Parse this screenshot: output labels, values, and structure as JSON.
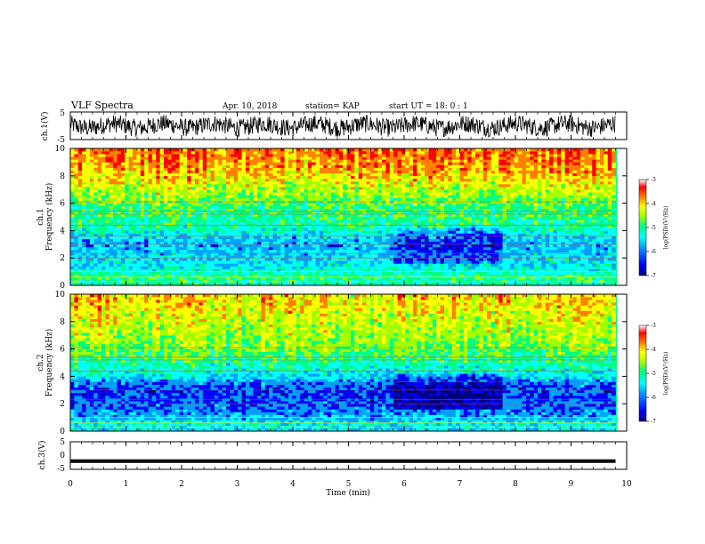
{
  "header": {
    "title": "VLF Spectra",
    "date": "Apr. 10, 2018",
    "station": "station= KAP",
    "start": "start  UT =   18: 0  : 1"
  },
  "colors": {
    "colormap": [
      "#00007f",
      "#0000ff",
      "#00a0ff",
      "#00ffff",
      "#00ff80",
      "#a0ff00",
      "#ffff00",
      "#ff8000",
      "#ff0000",
      "#ffffff"
    ],
    "waveform": "#000000"
  },
  "chart_data": [
    {
      "type": "line",
      "name": "ch1-waveform",
      "ylabel": "ch.1(V)",
      "ylim": [
        -5,
        5
      ],
      "yticks": [
        "5",
        "-5"
      ],
      "xlim": [
        0,
        10
      ],
      "description_values": {
        "mean": 0,
        "amplitude_approx": 2.5
      }
    },
    {
      "type": "heatmap",
      "name": "ch1-spectrogram",
      "ylabel": "ch.1\nFrequency  (kHz)",
      "ylim": [
        0,
        10
      ],
      "yticks": [
        "0",
        "2",
        "4",
        "6",
        "8",
        "10"
      ],
      "xlim": [
        0,
        10
      ],
      "data_end_min": 9.8,
      "colorbar": {
        "label": "log(PSD)(V²/Hz)",
        "min": -7,
        "max": -3,
        "ticks": [
          "-3",
          "-4",
          "-5",
          "-6",
          "-7"
        ]
      },
      "frequency_profile_logpsd": [
        [
          0.0,
          -5.2
        ],
        [
          0.5,
          -5.0
        ],
        [
          1.0,
          -5.3
        ],
        [
          1.5,
          -5.5
        ],
        [
          2.0,
          -5.6
        ],
        [
          2.5,
          -5.7
        ],
        [
          3.0,
          -5.8
        ],
        [
          3.5,
          -5.6
        ],
        [
          4.0,
          -5.3
        ],
        [
          4.5,
          -5.1
        ],
        [
          5.0,
          -5.0
        ],
        [
          5.5,
          -5.0
        ],
        [
          6.0,
          -4.8
        ],
        [
          6.5,
          -4.6
        ],
        [
          7.0,
          -4.4
        ],
        [
          7.5,
          -4.2
        ],
        [
          8.0,
          -4.0
        ],
        [
          8.5,
          -3.8
        ],
        [
          9.0,
          -3.7
        ],
        [
          9.5,
          -3.6
        ],
        [
          10.0,
          -3.5
        ]
      ],
      "quiet_interval_min": [
        5.8,
        7.8
      ]
    },
    {
      "type": "heatmap",
      "name": "ch2-spectrogram",
      "ylabel": "ch.2\nFrequency  (kHz)",
      "ylim": [
        0,
        10
      ],
      "yticks": [
        "0",
        "2",
        "4",
        "6",
        "8",
        "10"
      ],
      "xlim": [
        0,
        10
      ],
      "data_end_min": 9.8,
      "colorbar": {
        "label": "log(PSD)(V²/Hz)",
        "min": -7,
        "max": -3,
        "ticks": [
          "-3",
          "-4",
          "-5",
          "-6",
          "-7"
        ]
      },
      "frequency_profile_logpsd": [
        [
          0.0,
          -5.6
        ],
        [
          0.5,
          -5.4
        ],
        [
          1.0,
          -5.8
        ],
        [
          1.5,
          -6.0
        ],
        [
          2.0,
          -6.1
        ],
        [
          2.5,
          -6.2
        ],
        [
          3.0,
          -6.2
        ],
        [
          3.5,
          -6.0
        ],
        [
          4.0,
          -5.5
        ],
        [
          4.5,
          -5.3
        ],
        [
          5.0,
          -5.1
        ],
        [
          5.5,
          -4.9
        ],
        [
          6.0,
          -4.7
        ],
        [
          6.5,
          -4.6
        ],
        [
          7.0,
          -4.5
        ],
        [
          7.5,
          -4.4
        ],
        [
          8.0,
          -4.3
        ],
        [
          8.5,
          -4.2
        ],
        [
          9.0,
          -4.1
        ],
        [
          9.5,
          -4.0
        ],
        [
          10.0,
          -4.0
        ]
      ],
      "quiet_interval_min": [
        5.8,
        7.8
      ]
    },
    {
      "type": "line",
      "name": "ch3-waveform",
      "ylabel": "ch.3(V)",
      "ylim": [
        -5,
        5
      ],
      "yticks": [
        "5",
        "0",
        "-5"
      ],
      "xlim": [
        0,
        10
      ],
      "constant_value": -2
    }
  ],
  "xaxis": {
    "label": "Time  (min)",
    "ticks": [
      "0",
      "1",
      "2",
      "3",
      "4",
      "5",
      "6",
      "7",
      "8",
      "9",
      "10"
    ]
  }
}
